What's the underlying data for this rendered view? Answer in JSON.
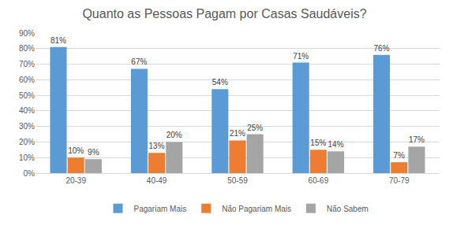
{
  "chart_data": {
    "type": "bar",
    "title": "Quanto as Pessoas Pagam por Casas Saudáveis?",
    "categories": [
      "20-39",
      "40-49",
      "50-59",
      "60-69",
      "70-79"
    ],
    "series": [
      {
        "name": "Pagariam Mais",
        "color": "#5B9BD5",
        "values": [
          81,
          67,
          54,
          71,
          76
        ],
        "value_labels": [
          "81%",
          "67%",
          "54%",
          "71%",
          "76%"
        ]
      },
      {
        "name": "Não Pagariam Mais",
        "color": "#ED7D31",
        "values": [
          10,
          13,
          21,
          15,
          7
        ],
        "value_labels": [
          "10%",
          "13%",
          "21%",
          "15%",
          "7%"
        ]
      },
      {
        "name": "Não Sabem",
        "color": "#A5A5A5",
        "values": [
          9,
          20,
          25,
          14,
          17
        ],
        "value_labels": [
          "9%",
          "20%",
          "25%",
          "14%",
          "17%"
        ]
      }
    ],
    "ylim": [
      0,
      90
    ],
    "yticks": [
      {
        "value": 0,
        "label": "0%"
      },
      {
        "value": 10,
        "label": "10%"
      },
      {
        "value": 20,
        "label": "20%"
      },
      {
        "value": 30,
        "label": "30%"
      },
      {
        "value": 40,
        "label": "40%"
      },
      {
        "value": 50,
        "label": "50%"
      },
      {
        "value": 60,
        "label": "60%"
      },
      {
        "value": 70,
        "label": "70%"
      },
      {
        "value": 80,
        "label": "80%"
      },
      {
        "value": 90,
        "label": "90%"
      }
    ],
    "grid": true,
    "legend": "bottom",
    "data_labels": true
  }
}
